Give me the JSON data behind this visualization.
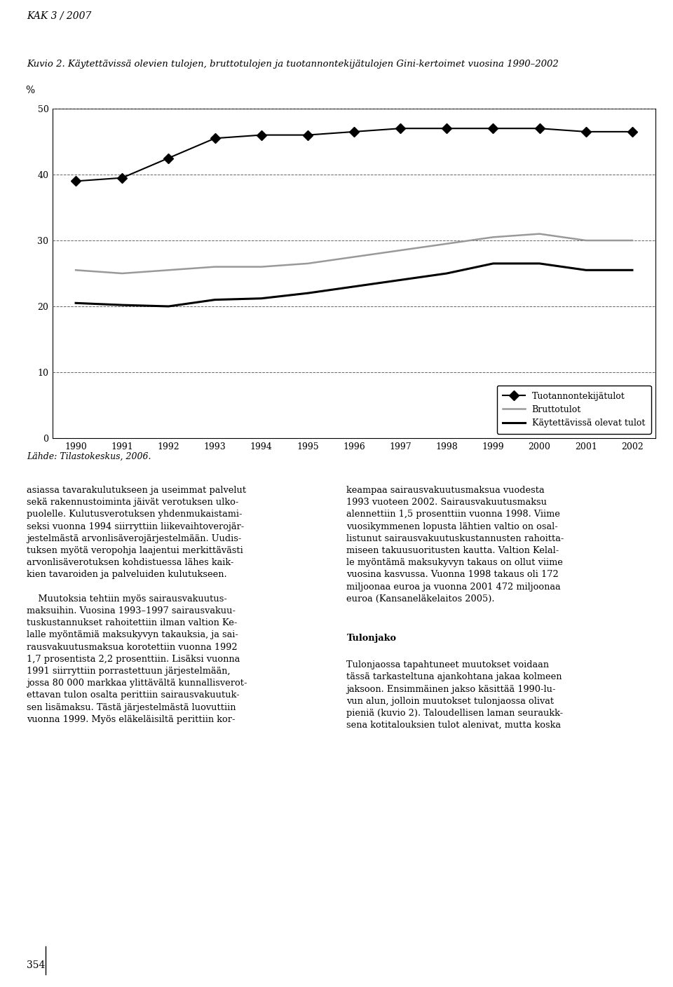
{
  "title": "Kuvio 2. Käytettävissä olevien tulojen, bruttotulojen ja tuotannontekijätulojen Gini-kertoimet vuosina 1990–2002",
  "header": "KAK 3 / 2007",
  "ylabel": "%",
  "ylim": [
    0,
    50
  ],
  "yticks": [
    0,
    10,
    20,
    30,
    40,
    50
  ],
  "years": [
    1990,
    1991,
    1992,
    1993,
    1994,
    1995,
    1996,
    1997,
    1998,
    1999,
    2000,
    2001,
    2002
  ],
  "tuotannontekijatulot": [
    39.0,
    39.5,
    42.5,
    45.5,
    46.0,
    46.0,
    46.5,
    47.0,
    47.0,
    47.0,
    47.0,
    46.5,
    46.5
  ],
  "bruttotulot": [
    25.5,
    25.0,
    25.5,
    26.0,
    26.0,
    26.5,
    27.5,
    28.5,
    29.5,
    30.5,
    31.0,
    30.0,
    30.0
  ],
  "kaytettavissa": [
    20.5,
    20.2,
    20.0,
    21.0,
    21.2,
    22.0,
    23.0,
    24.0,
    25.0,
    26.5,
    26.5,
    25.5,
    25.5
  ],
  "legend_labels": [
    "Tuotannontekijätulot",
    "Bruttotulot",
    "Käytettävissä olevat tulot"
  ],
  "source_text": "Lähde: Tilastokeskus, 2006.",
  "body_text_left": "asiassa tavarakulutukseen ja useimmat palvelut sekä rakennustoiminta jäivät verotuksen ulko-puolelle. Kulutusverotuksen yhdenmukaistami-seksi vuonna 1994 siirryttiin liikevaihtoverojär-jestelmästä arvonlisäverojärjestelmään. Uudis-tuksen myötä veropohja laajentui merkittävästi arvonlisäverotuksen kohdistuessa lähes kaik-kien tavaroiden ja palveluiden kulutukseen.\n\n\tMuutoksia tehtiin myös sairausvakuutus-maksuihin. Vuosina 1993–1997 sairausvakuu-tuskustannukset rahoitettiin ilman valtion Ke-lalle myöntämiä maksukyvyn takauksia, ja sai-rausvakuutusmaksua korotettiin vuonna 1992 1,7 prosentista 2,2 prosenttiin. Lisäksi vuonna 1991 siirryttiin porrastettuun järjestelmään, jossa 80 000 markkaa ylittävältä kunnallisverot-ettavan tulon osalta perittiin sairausvakuutuk-sen lisämaksu. Tästä järjestelmästä luovuttiin vuonna 1999. Myös eläkeläisiltä perittiin kor-",
  "body_text_right": "keampaa sairausvakuutusmaksua vuodesta 1993 vuoteen 2002. Sairausvakuutusmaksu alennettiin 1,5 prosenttiin vuonna 1998. Viime vuosikymmenen lopusta lähtien valtio on osal-listunut sairausvakuutuskustannusten rahoitta-miseen takuusuoritusten kautta. Valtion Kelal-le myöntämä maksukyvyn takaus on ollut viime vuosina kasvussa. Vuonna 1998 takaus oli 172 miljoonaa euroa ja vuonna 2001 472 miljoonaa euroa (Kansaneläkelaitos 2005).",
  "tulonjako_header": "Tulonjako",
  "tulonjako_text": "Tulonjaossa tapahtuneet muutokset voidaan tässä tarkasteltuna ajankohtana jakaa kolmeen jaksoon. Ensimmäinen jakso käsittää 1990-lu-vun alun, jolloin muutokset tulonjaossa olivat pieniä (kuvio 2). Taloudellisen laman seuraukk-sena kotitalouksien tulot alenivat, mutta koska",
  "page_number": "354"
}
